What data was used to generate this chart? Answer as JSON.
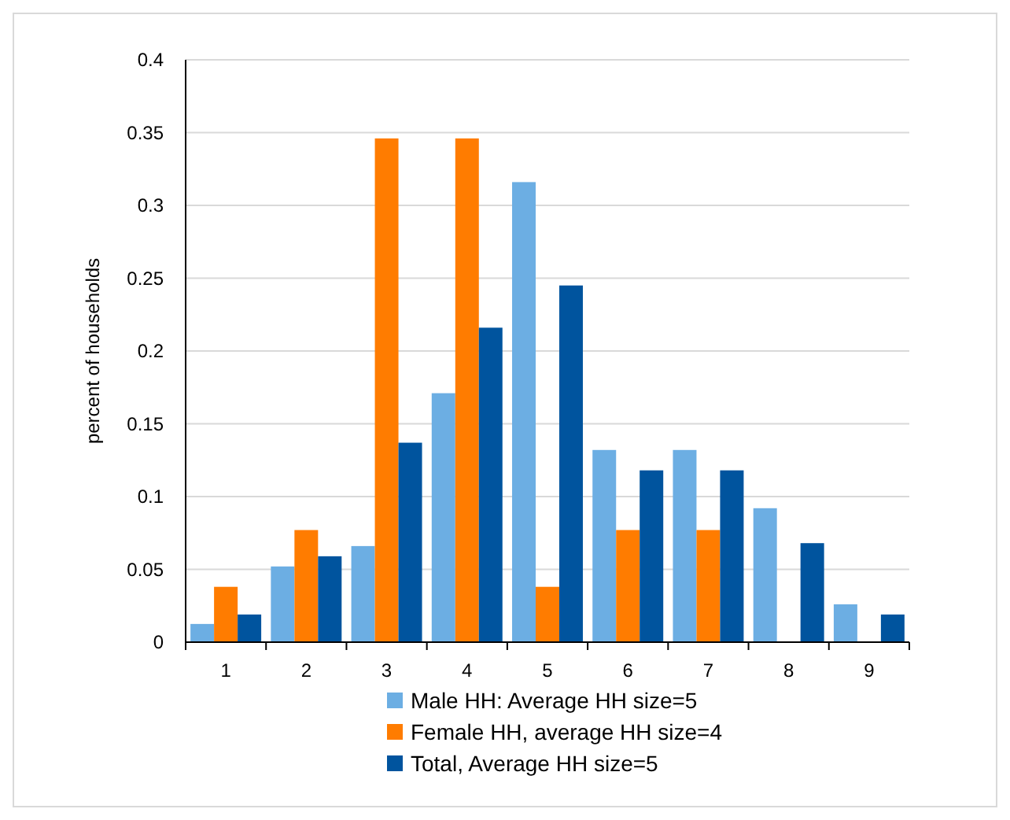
{
  "chart_data": {
    "type": "bar",
    "ylabel": "percent of households",
    "categories": [
      "1",
      "2",
      "3",
      "4",
      "5",
      "6",
      "7",
      "8",
      "9"
    ],
    "series": [
      {
        "name": "Male HH: Average HH size=5",
        "color": "#6caee3",
        "values": [
          0.0125,
          0.052,
          0.066,
          0.171,
          0.316,
          0.132,
          0.132,
          0.092,
          0.026
        ]
      },
      {
        "name": "Female HH, average HH size=4",
        "color": "#ff7c00",
        "values": [
          0.038,
          0.077,
          0.346,
          0.346,
          0.038,
          0.077,
          0.077,
          0,
          0
        ]
      },
      {
        "name": "Total, Average HH size=5",
        "color": "#00549e",
        "values": [
          0.019,
          0.059,
          0.137,
          0.216,
          0.245,
          0.118,
          0.118,
          0.068,
          0.019
        ]
      }
    ],
    "ylim": [
      0,
      0.4
    ],
    "yticks": [
      0,
      0.05,
      0.1,
      0.15,
      0.2,
      0.25,
      0.3,
      0.35,
      0.4
    ],
    "grid": "y",
    "legend": "bottom"
  }
}
